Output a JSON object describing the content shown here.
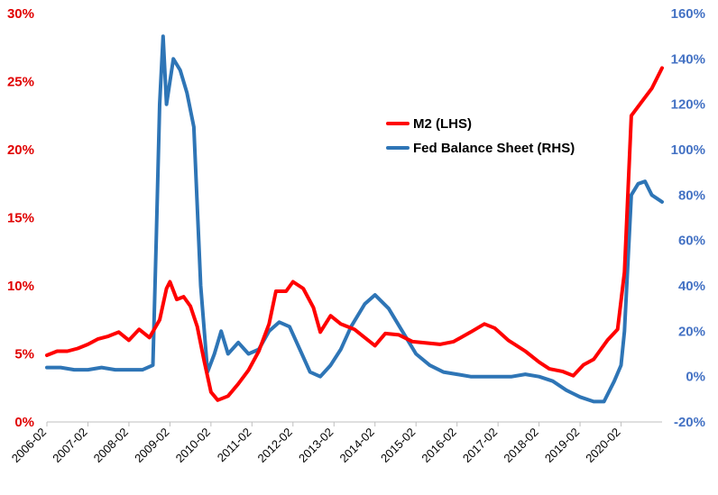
{
  "chart_data": {
    "type": "line",
    "title": "",
    "xlabel": "",
    "ylabel": "",
    "x_ticks": [
      "2006-02",
      "2007-02",
      "2008-02",
      "2009-02",
      "2010-02",
      "2011-02",
      "2012-02",
      "2013-02",
      "2014-02",
      "2015-02",
      "2016-02",
      "2017-02",
      "2018-02",
      "2019-02",
      "2020-02"
    ],
    "y_left": {
      "min": 0,
      "max": 30,
      "ticks": [
        "0%",
        "5%",
        "10%",
        "15%",
        "20%",
        "25%",
        "30%"
      ],
      "color": "#e00000"
    },
    "y_right": {
      "min": -20,
      "max": 160,
      "ticks": [
        "-20%",
        "0%",
        "20%",
        "40%",
        "60%",
        "80%",
        "100%",
        "120%",
        "140%",
        "160%"
      ],
      "color": "#4472c4"
    },
    "legend_position": "upper-center-right",
    "grid": false,
    "series": [
      {
        "name": "M2 (LHS)",
        "axis": "left",
        "color": "#ff0000",
        "points": [
          [
            "2006-02",
            4.9
          ],
          [
            "2006-05",
            5.2
          ],
          [
            "2006-08",
            5.2
          ],
          [
            "2006-11",
            5.4
          ],
          [
            "2007-02",
            5.7
          ],
          [
            "2007-05",
            6.1
          ],
          [
            "2007-08",
            6.3
          ],
          [
            "2007-11",
            6.6
          ],
          [
            "2008-02",
            6.0
          ],
          [
            "2008-05",
            6.8
          ],
          [
            "2008-08",
            6.2
          ],
          [
            "2008-11",
            7.5
          ],
          [
            "2009-01",
            9.8
          ],
          [
            "2009-02",
            10.3
          ],
          [
            "2009-04",
            9.0
          ],
          [
            "2009-06",
            9.2
          ],
          [
            "2009-08",
            8.5
          ],
          [
            "2009-10",
            7.0
          ],
          [
            "2009-12",
            4.5
          ],
          [
            "2010-02",
            2.2
          ],
          [
            "2010-04",
            1.6
          ],
          [
            "2010-07",
            1.9
          ],
          [
            "2010-10",
            2.8
          ],
          [
            "2011-01",
            3.8
          ],
          [
            "2011-04",
            5.2
          ],
          [
            "2011-07",
            7.2
          ],
          [
            "2011-09",
            9.6
          ],
          [
            "2011-12",
            9.6
          ],
          [
            "2012-02",
            10.3
          ],
          [
            "2012-05",
            9.8
          ],
          [
            "2012-08",
            8.4
          ],
          [
            "2012-10",
            6.6
          ],
          [
            "2013-01",
            7.8
          ],
          [
            "2013-04",
            7.2
          ],
          [
            "2013-08",
            6.8
          ],
          [
            "2013-11",
            6.2
          ],
          [
            "2014-02",
            5.6
          ],
          [
            "2014-05",
            6.5
          ],
          [
            "2014-09",
            6.4
          ],
          [
            "2015-01",
            5.9
          ],
          [
            "2015-05",
            5.8
          ],
          [
            "2015-09",
            5.7
          ],
          [
            "2016-01",
            5.9
          ],
          [
            "2016-06",
            6.6
          ],
          [
            "2016-10",
            7.2
          ],
          [
            "2017-01",
            6.9
          ],
          [
            "2017-05",
            6.0
          ],
          [
            "2017-10",
            5.2
          ],
          [
            "2018-02",
            4.4
          ],
          [
            "2018-05",
            3.9
          ],
          [
            "2018-09",
            3.7
          ],
          [
            "2018-12",
            3.4
          ],
          [
            "2019-03",
            4.2
          ],
          [
            "2019-06",
            4.6
          ],
          [
            "2019-10",
            6.0
          ],
          [
            "2020-01",
            6.8
          ],
          [
            "2020-03",
            11.0
          ],
          [
            "2020-05",
            22.5
          ],
          [
            "2020-08",
            23.5
          ],
          [
            "2020-11",
            24.5
          ],
          [
            "2021-02",
            26.0
          ]
        ]
      },
      {
        "name": "Fed Balance Sheet (RHS)",
        "axis": "right",
        "color": "#2e75b6",
        "points": [
          [
            "2006-02",
            4
          ],
          [
            "2006-06",
            4
          ],
          [
            "2006-10",
            3
          ],
          [
            "2007-02",
            3
          ],
          [
            "2007-06",
            4
          ],
          [
            "2007-10",
            3
          ],
          [
            "2008-02",
            3
          ],
          [
            "2008-06",
            3
          ],
          [
            "2008-09",
            5
          ],
          [
            "2008-10",
            60
          ],
          [
            "2008-11",
            120
          ],
          [
            "2008-12",
            150
          ],
          [
            "2009-01",
            120
          ],
          [
            "2009-02",
            130
          ],
          [
            "2009-03",
            140
          ],
          [
            "2009-05",
            135
          ],
          [
            "2009-07",
            125
          ],
          [
            "2009-09",
            110
          ],
          [
            "2009-11",
            40
          ],
          [
            "2010-01",
            2
          ],
          [
            "2010-03",
            10
          ],
          [
            "2010-05",
            20
          ],
          [
            "2010-07",
            10
          ],
          [
            "2010-10",
            15
          ],
          [
            "2011-01",
            10
          ],
          [
            "2011-04",
            12
          ],
          [
            "2011-07",
            20
          ],
          [
            "2011-10",
            24
          ],
          [
            "2012-01",
            22
          ],
          [
            "2012-04",
            12
          ],
          [
            "2012-07",
            2
          ],
          [
            "2012-10",
            0
          ],
          [
            "2013-01",
            5
          ],
          [
            "2013-04",
            12
          ],
          [
            "2013-07",
            22
          ],
          [
            "2013-11",
            32
          ],
          [
            "2014-02",
            36
          ],
          [
            "2014-06",
            30
          ],
          [
            "2014-10",
            20
          ],
          [
            "2015-02",
            10
          ],
          [
            "2015-06",
            5
          ],
          [
            "2015-10",
            2
          ],
          [
            "2016-02",
            1
          ],
          [
            "2016-06",
            0
          ],
          [
            "2016-10",
            0
          ],
          [
            "2017-02",
            0
          ],
          [
            "2017-06",
            0
          ],
          [
            "2017-10",
            1
          ],
          [
            "2018-02",
            0
          ],
          [
            "2018-06",
            -2
          ],
          [
            "2018-10",
            -6
          ],
          [
            "2019-02",
            -9
          ],
          [
            "2019-06",
            -11
          ],
          [
            "2019-09",
            -11
          ],
          [
            "2019-12",
            -2
          ],
          [
            "2020-02",
            5
          ],
          [
            "2020-03",
            20
          ],
          [
            "2020-04",
            50
          ],
          [
            "2020-05",
            80
          ],
          [
            "2020-07",
            85
          ],
          [
            "2020-09",
            86
          ],
          [
            "2020-11",
            80
          ],
          [
            "2021-02",
            77
          ]
        ]
      }
    ]
  }
}
